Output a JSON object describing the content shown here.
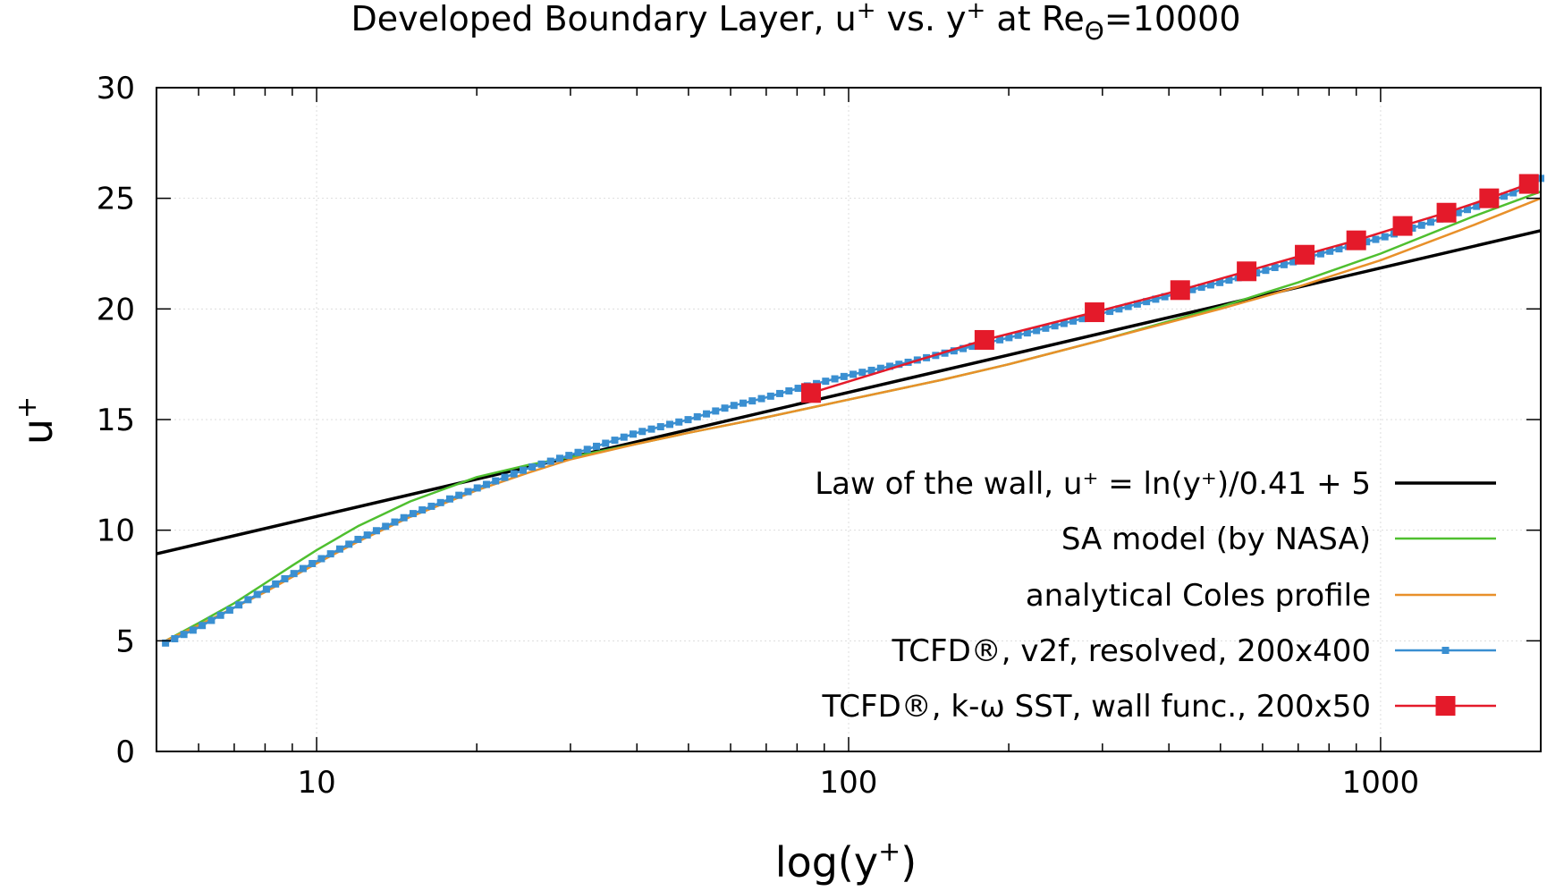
{
  "chart_data": {
    "type": "line",
    "title": {
      "main": "Developed Boundary Layer, u",
      "sup1": "+",
      "mid": " vs. y",
      "sup2": "+",
      "mid2": " at Re",
      "sub": "Θ",
      "end": "=10000"
    },
    "xlabel": {
      "main": "log(y",
      "sup": "+",
      "end": ")"
    },
    "ylabel": {
      "main": "u",
      "sup": "+"
    },
    "xscale": "log",
    "xlim": [
      5,
      2000
    ],
    "ylim": [
      0,
      30
    ],
    "xticks": [
      {
        "value": 10,
        "label": "10"
      },
      {
        "value": 100,
        "label": "100"
      },
      {
        "value": 1000,
        "label": "1000"
      }
    ],
    "yticks": [
      {
        "value": 0,
        "label": "0"
      },
      {
        "value": 5,
        "label": "5"
      },
      {
        "value": 10,
        "label": "10"
      },
      {
        "value": 15,
        "label": "15"
      },
      {
        "value": 20,
        "label": "20"
      },
      {
        "value": 25,
        "label": "25"
      },
      {
        "value": 30,
        "label": "30"
      }
    ],
    "grid": true,
    "legend_position": "bottom-right",
    "series": [
      {
        "name": "Law of the wall, u⁺ = ln(y⁺)/0.41 + 5",
        "color": "#000000",
        "marker": "none",
        "x": [
          5,
          10,
          20,
          50,
          100,
          200,
          500,
          1000,
          2000
        ],
        "y": [
          8.93,
          10.62,
          12.31,
          14.54,
          16.23,
          17.92,
          20.16,
          21.85,
          23.54
        ]
      },
      {
        "name": "SA model (by NASA)",
        "color": "#4fbf2f",
        "marker": "none",
        "x": [
          5.2,
          6,
          7,
          8,
          9,
          10,
          12,
          15,
          20,
          25,
          30,
          40,
          50,
          70,
          100,
          150,
          200,
          300,
          500,
          700,
          1000,
          1500,
          2000
        ],
        "y": [
          5.0,
          5.8,
          6.7,
          7.6,
          8.4,
          9.1,
          10.2,
          11.3,
          12.4,
          12.95,
          13.3,
          13.9,
          14.4,
          15.1,
          15.9,
          16.8,
          17.5,
          18.6,
          20.1,
          21.2,
          22.5,
          24.2,
          25.3
        ]
      },
      {
        "name": "analytical Coles profile",
        "color": "#e8902a",
        "marker": "none",
        "x": [
          5.2,
          6,
          7,
          8,
          10,
          12,
          15,
          20,
          25,
          30,
          40,
          50,
          70,
          100,
          150,
          200,
          300,
          500,
          700,
          1000,
          1500,
          2000
        ],
        "y": [
          5.0,
          5.7,
          6.5,
          7.2,
          8.5,
          9.5,
          10.6,
          11.8,
          12.6,
          13.2,
          13.9,
          14.4,
          15.1,
          15.9,
          16.8,
          17.5,
          18.6,
          20.0,
          21.0,
          22.2,
          23.8,
          25.0
        ]
      },
      {
        "name": "TCFD®, v2f, resolved, 200x400",
        "color": "#3a8fd1",
        "marker": "small-square",
        "x": [
          5.2,
          6,
          7,
          8,
          9,
          10,
          12,
          15,
          20,
          25,
          30,
          40,
          50,
          60,
          70,
          80,
          100,
          130,
          170,
          200,
          250,
          300,
          400,
          500,
          600,
          700,
          800,
          1000,
          1200,
          1500,
          1800,
          2000
        ],
        "y": [
          4.9,
          5.6,
          6.5,
          7.3,
          8.0,
          8.6,
          9.6,
          10.7,
          11.9,
          12.8,
          13.4,
          14.4,
          15.0,
          15.6,
          16.0,
          16.4,
          17.0,
          17.6,
          18.3,
          18.7,
          19.3,
          19.8,
          20.6,
          21.2,
          21.7,
          22.2,
          22.6,
          23.2,
          23.8,
          24.6,
          25.3,
          25.9
        ]
      },
      {
        "name": "TCFD®, k-ω SST, wall func., 200x50",
        "color": "#e41a2a",
        "marker": "big-square",
        "x": [
          85,
          180,
          290,
          420,
          560,
          720,
          900,
          1100,
          1330,
          1600,
          1900
        ],
        "y": [
          16.2,
          18.6,
          19.85,
          20.85,
          21.7,
          22.45,
          23.1,
          23.75,
          24.35,
          25.0,
          25.65
        ]
      }
    ]
  }
}
